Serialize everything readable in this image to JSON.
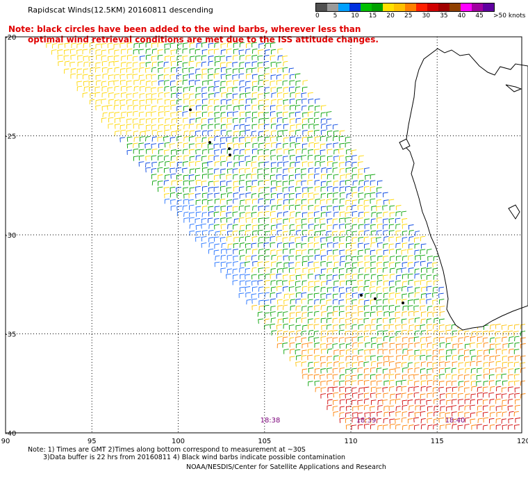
{
  "title": "Rapidscat Winds(12.5KM) 20160811 descending",
  "note_line1": "Note: black circles have been added to the wind barbs, wherever less than",
  "note_line2": "optimal wind retrieval conditions are met due to the ISS attitude changes.",
  "legend": {
    "labels": [
      "0",
      "5",
      "10",
      "15",
      "20",
      "25",
      "30",
      "35",
      "40",
      "45",
      ">50 knots"
    ],
    "colors": [
      "#505050",
      "#9a9a9a",
      "#00a0ff",
      "#0030e0",
      "#00c000",
      "#00a000",
      "#ffe000",
      "#ffc000",
      "#ff8000",
      "#ff2000",
      "#d00000",
      "#a00000",
      "#904000",
      "#ff00ff",
      "#a000a0",
      "#6000a0"
    ]
  },
  "axes": {
    "lat_labels": [
      "-20",
      "-25",
      "-30",
      "-35",
      "-40"
    ],
    "lon_labels": [
      "90",
      "95",
      "100",
      "105",
      "110",
      "115",
      "120"
    ]
  },
  "time_labels": [
    "18:38",
    "18:39",
    "18:40"
  ],
  "footer": {
    "line1": "Note: 1) Times are GMT 2)Times along bottom correspond to measurement at ~30S",
    "line2": "3)Data buffer is 22 hrs from 20160811 4) Black wind barbs indicate possible contamination",
    "credit": "NOAA/NESDIS/Center for Satellite Applications and Research"
  }
}
